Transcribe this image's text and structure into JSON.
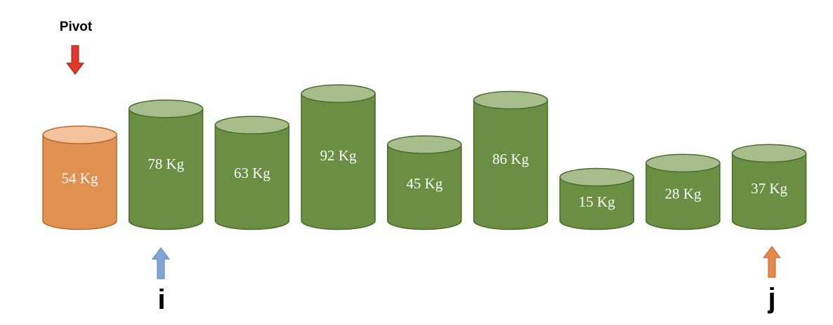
{
  "pivot": {
    "label": "Pivot",
    "arrow_color": "#e0392b"
  },
  "pointers": {
    "i": {
      "label": "i",
      "arrow_color": "#7ea6d8"
    },
    "j": {
      "label": "j",
      "arrow_color": "#e8894a"
    }
  },
  "colors": {
    "pivot_body": "#e09150",
    "pivot_top": "#f1c29c",
    "pivot_stroke": "#b86a2c",
    "bar_body": "#6a8f42",
    "bar_top": "#a7bd8c",
    "bar_stroke": "#4b6b2c"
  },
  "cylinders": [
    {
      "label": "54 Kg",
      "value": 54,
      "role": "pivot"
    },
    {
      "label": "78 Kg",
      "value": 78,
      "role": "i"
    },
    {
      "label": "63 Kg",
      "value": 63,
      "role": ""
    },
    {
      "label": "92 Kg",
      "value": 92,
      "role": ""
    },
    {
      "label": "45 Kg",
      "value": 45,
      "role": ""
    },
    {
      "label": "86 Kg",
      "value": 86,
      "role": ""
    },
    {
      "label": "15 Kg",
      "value": 15,
      "role": ""
    },
    {
      "label": "28 Kg",
      "value": 28,
      "role": ""
    },
    {
      "label": "37 Kg",
      "value": 37,
      "role": "j"
    }
  ]
}
